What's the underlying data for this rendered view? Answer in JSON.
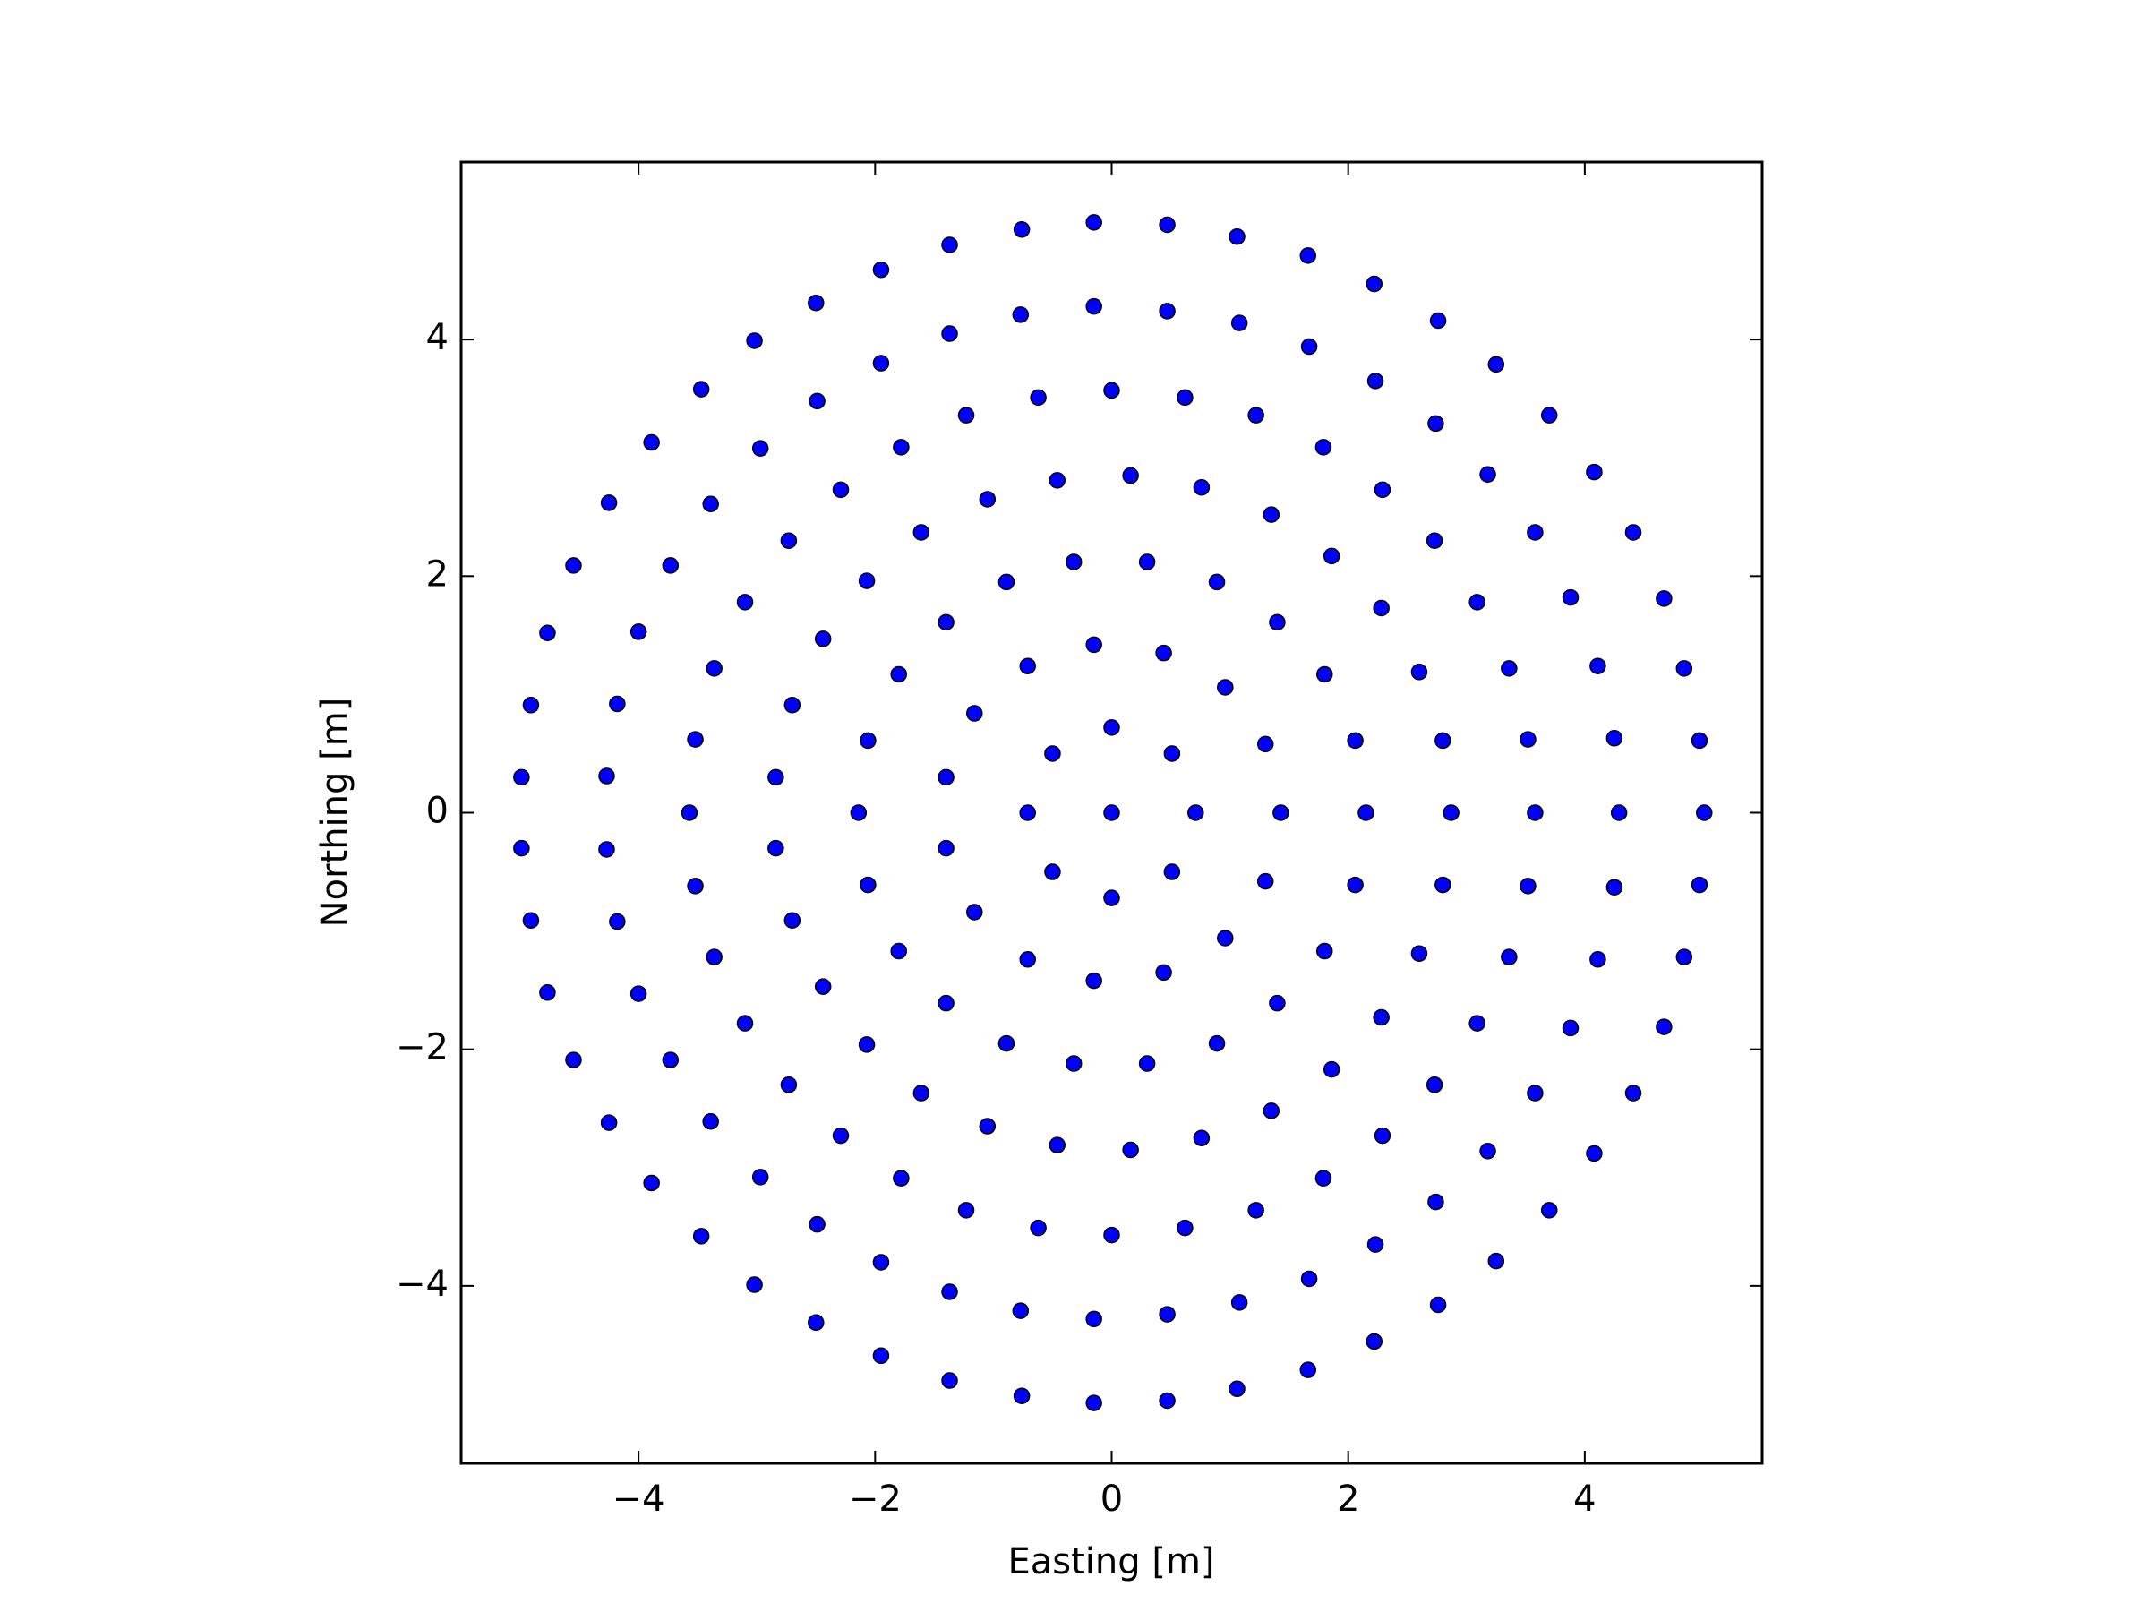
{
  "chart_data": {
    "type": "scatter",
    "xlabel": "Easting [m]",
    "ylabel": "Northing [m]",
    "color": "#0000ff",
    "edgecolor": "#000000",
    "grid": false,
    "xlim": [
      -5.5,
      5.5
    ],
    "ylim": [
      -5.5,
      5.5
    ],
    "xticks": [
      {
        "value": -4,
        "label": "−4"
      },
      {
        "value": -2,
        "label": "−2"
      },
      0,
      2,
      4
    ],
    "yticks": [
      {
        "value": -4,
        "label": "−4"
      },
      {
        "value": -2,
        "label": "−2"
      },
      0,
      2,
      4
    ],
    "x": [
      -0.15,
      0.47,
      1.06,
      1.66,
      2.22,
      2.76,
      3.25,
      3.7,
      4.08,
      4.41,
      4.67,
      4.84,
      4.97,
      -0.76,
      -1.37,
      -1.95,
      -2.5,
      -3.02,
      -3.47,
      -3.89,
      -4.25,
      -4.55,
      -4.77,
      -4.91,
      -4.99,
      -0.15,
      0.47,
      1.08,
      1.67,
      2.23,
      2.74,
      3.18,
      3.58,
      3.88,
      4.11,
      4.25,
      -0.77,
      -1.37,
      -1.95,
      -2.49,
      -2.97,
      -3.39,
      -3.73,
      -4.0,
      -4.18,
      -4.27,
      0,
      0.62,
      1.22,
      1.79,
      2.29,
      2.73,
      3.09,
      3.36,
      3.52,
      -0.62,
      -1.23,
      -1.78,
      -2.29,
      -2.73,
      -3.1,
      -3.36,
      -3.52,
      0.16,
      0.76,
      1.35,
      1.86,
      2.28,
      2.6,
      2.8,
      -0.46,
      -1.05,
      -1.61,
      -2.07,
      -2.44,
      -2.7,
      -2.84,
      -0.32,
      0.3,
      0.89,
      1.4,
      1.8,
      2.06,
      -0.89,
      -1.4,
      -1.8,
      -2.06,
      -0.15,
      0.44,
      0.96,
      1.3,
      -0.71,
      -1.16,
      -1.4,
      0,
      0.51,
      -0.5,
      5.01,
      4.29,
      3.58,
      2.87,
      2.15,
      1.43,
      0.71,
      0,
      -0.71,
      -2.14,
      -3.57,
      -0.15,
      0.47,
      1.06,
      1.66,
      2.22,
      2.76,
      3.25,
      3.7,
      4.08,
      4.41,
      4.67,
      4.84,
      4.97,
      -0.76,
      -1.37,
      -1.95,
      -2.5,
      -3.02,
      -3.47,
      -3.89,
      -4.25,
      -4.55,
      -4.77,
      -4.91,
      -4.99,
      -0.15,
      0.47,
      1.08,
      1.67,
      2.23,
      2.74,
      3.18,
      3.58,
      3.88,
      4.11,
      4.25,
      -0.77,
      -1.37,
      -1.95,
      -2.49,
      -2.97,
      -3.39,
      -3.73,
      -4.0,
      -4.18,
      -4.27,
      0,
      0.62,
      1.22,
      1.79,
      2.29,
      2.73,
      3.09,
      3.36,
      3.52,
      -0.62,
      -1.23,
      -1.78,
      -2.29,
      -2.73,
      -3.1,
      -3.36,
      -3.52,
      0.16,
      0.76,
      1.35,
      1.86,
      2.28,
      2.6,
      2.8,
      -0.46,
      -1.05,
      -1.61,
      -2.07,
      -2.44,
      -2.7,
      -2.84,
      -0.32,
      0.3,
      0.89,
      1.4,
      1.8,
      2.06,
      -0.89,
      -1.4,
      -1.8,
      -2.06,
      -0.15,
      0.44,
      0.96,
      1.3,
      -0.71,
      -1.16,
      -1.4,
      0,
      0.51,
      -0.5
    ],
    "y": [
      4.99,
      4.97,
      4.87,
      4.71,
      4.47,
      4.16,
      3.79,
      3.36,
      2.88,
      2.37,
      1.81,
      1.22,
      0.61,
      4.93,
      4.8,
      4.59,
      4.31,
      3.99,
      3.58,
      3.13,
      2.62,
      2.09,
      1.52,
      0.91,
      0.3,
      4.28,
      4.24,
      4.14,
      3.94,
      3.65,
      3.29,
      2.86,
      2.37,
      1.82,
      1.24,
      0.63,
      4.21,
      4.05,
      3.8,
      3.48,
      3.08,
      2.61,
      2.09,
      1.53,
      0.92,
      0.31,
      3.57,
      3.51,
      3.36,
      3.09,
      2.73,
      2.3,
      1.78,
      1.22,
      0.62,
      3.51,
      3.36,
      3.09,
      2.73,
      2.3,
      1.78,
      1.22,
      0.62,
      2.85,
      2.75,
      2.52,
      2.17,
      1.73,
      1.19,
      0.61,
      2.81,
      2.65,
      2.37,
      1.96,
      1.47,
      0.91,
      0.3,
      2.12,
      2.12,
      1.95,
      1.61,
      1.17,
      0.61,
      1.95,
      1.61,
      1.17,
      0.61,
      1.42,
      1.35,
      1.06,
      0.58,
      1.24,
      0.84,
      0.3,
      0.72,
      0.5,
      0.5,
      0,
      0,
      0,
      0,
      0,
      0,
      0,
      0,
      0,
      0,
      0,
      -4.99,
      -4.97,
      -4.87,
      -4.71,
      -4.47,
      -4.16,
      -3.79,
      -3.36,
      -2.88,
      -2.37,
      -1.81,
      -1.22,
      -0.61,
      -4.93,
      -4.8,
      -4.59,
      -4.31,
      -3.99,
      -3.58,
      -3.13,
      -2.62,
      -2.09,
      -1.52,
      -0.91,
      -0.3,
      -4.28,
      -4.24,
      -4.14,
      -3.94,
      -3.65,
      -3.29,
      -2.86,
      -2.37,
      -1.82,
      -1.24,
      -0.63,
      -4.21,
      -4.05,
      -3.8,
      -3.48,
      -3.08,
      -2.61,
      -2.09,
      -1.53,
      -0.92,
      -0.31,
      -3.57,
      -3.51,
      -3.36,
      -3.09,
      -2.73,
      -2.3,
      -1.78,
      -1.22,
      -0.62,
      -3.51,
      -3.36,
      -3.09,
      -2.73,
      -2.3,
      -1.78,
      -1.22,
      -0.62,
      -2.85,
      -2.75,
      -2.52,
      -2.17,
      -1.73,
      -1.19,
      -0.61,
      -2.81,
      -2.65,
      -2.37,
      -1.96,
      -1.47,
      -0.91,
      -0.3,
      -2.12,
      -2.12,
      -1.95,
      -1.61,
      -1.17,
      -0.61,
      -1.95,
      -1.61,
      -1.17,
      -0.61,
      -1.42,
      -1.35,
      -1.06,
      -0.58,
      -1.24,
      -0.84,
      -0.3,
      -0.72,
      -0.5,
      -0.5
    ]
  }
}
